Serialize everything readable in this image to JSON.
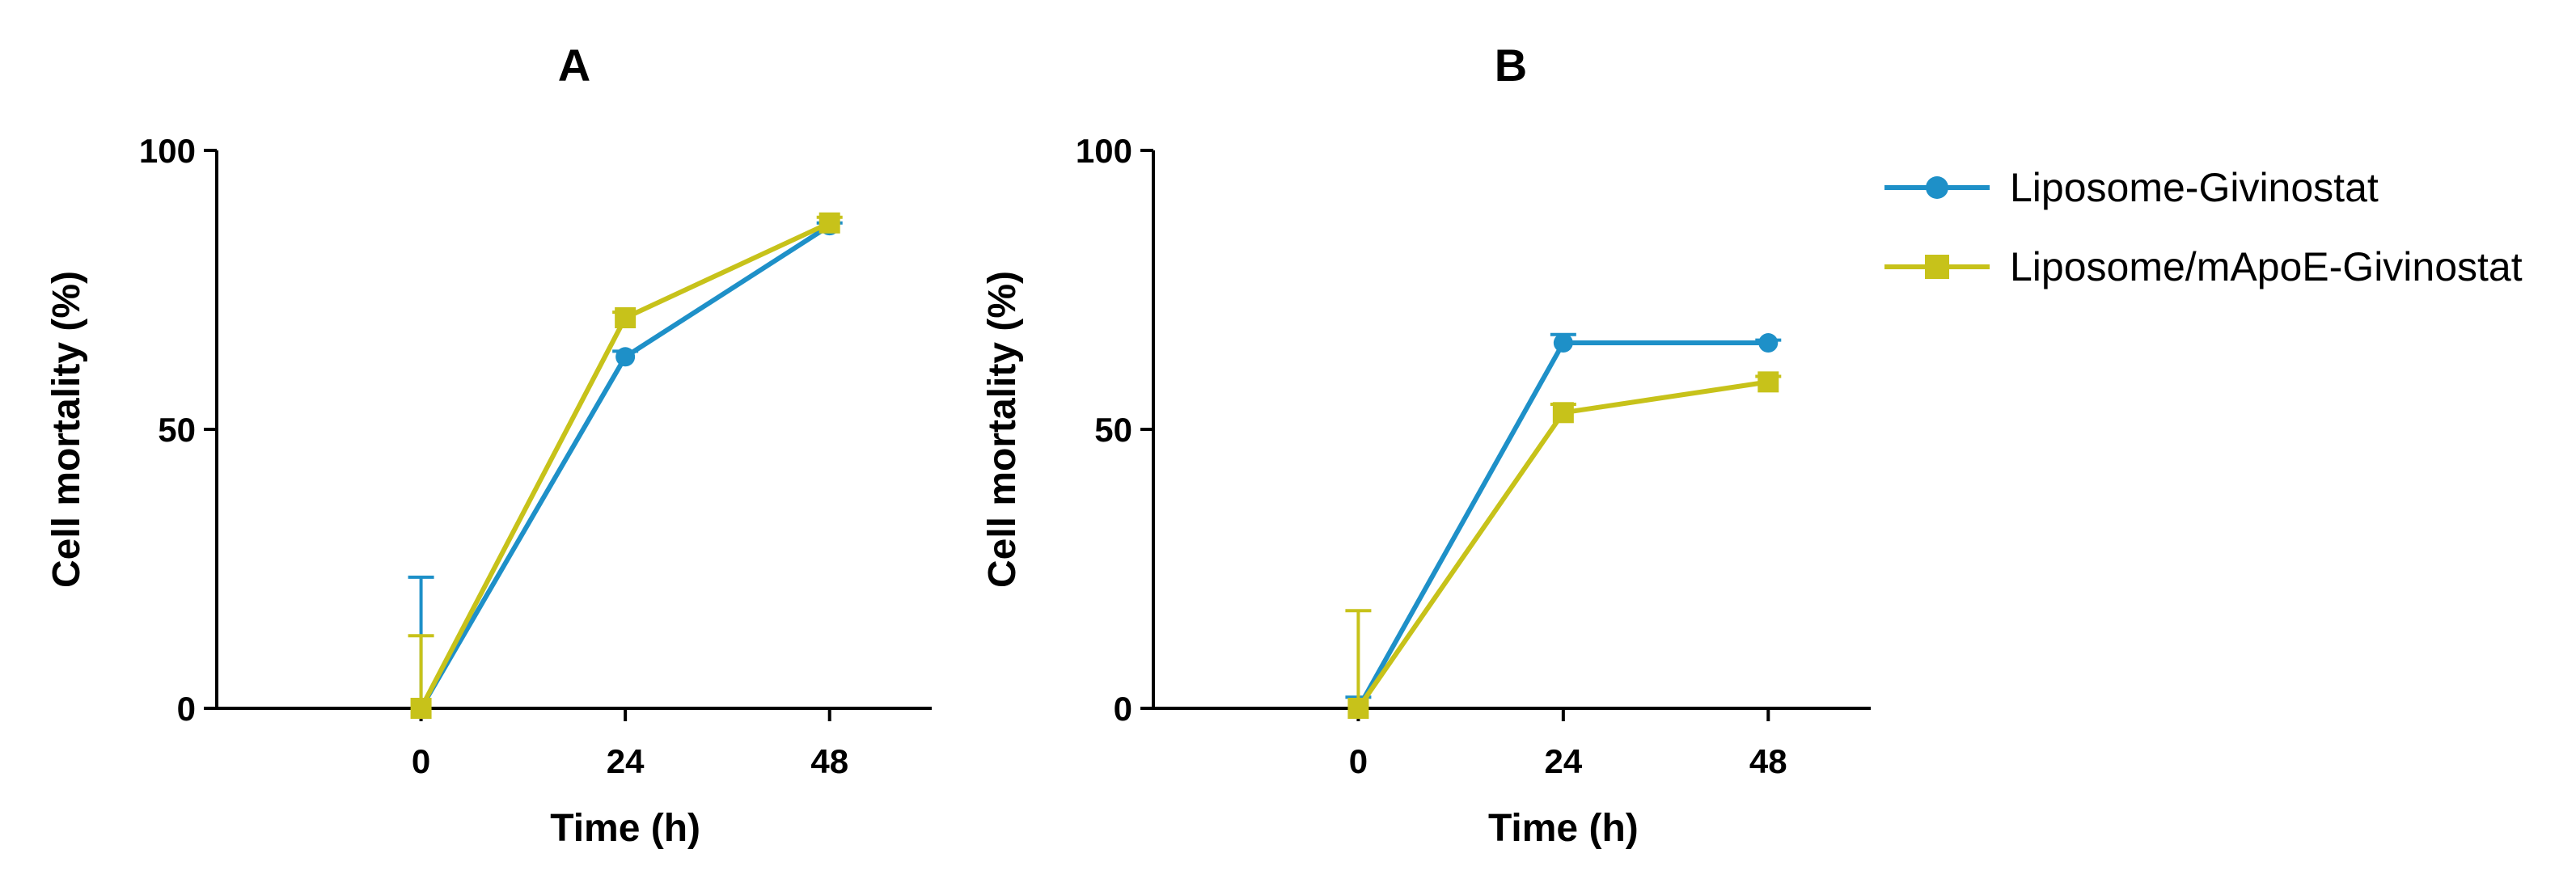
{
  "colors": {
    "liposome": "#1e90c8",
    "mapoe": "#c7c21a"
  },
  "legend": {
    "items": [
      {
        "label": "Liposome-Givinostat",
        "marker": "circle",
        "color": "#1e90c8"
      },
      {
        "label": "Liposome/mApoE-Givinostat",
        "marker": "square",
        "color": "#c7c21a"
      }
    ]
  },
  "chart_data": [
    {
      "type": "line",
      "title": "A",
      "xlabel": "Time (h)",
      "ylabel": "Cell mortality (%)",
      "categories": [
        0,
        24,
        48
      ],
      "xlim": [
        -24,
        60
      ],
      "ylim": [
        0,
        100
      ],
      "yticks": [
        0,
        50,
        100
      ],
      "series": [
        {
          "name": "Liposome-Givinostat",
          "values": [
            0,
            63,
            86.5
          ],
          "error_upper": [
            23.5,
            1,
            0.5
          ]
        },
        {
          "name": "Liposome/mApoE-Givinostat",
          "values": [
            0,
            70,
            87
          ],
          "error_upper": [
            13,
            1,
            1
          ]
        }
      ]
    },
    {
      "type": "line",
      "title": "B",
      "xlabel": "Time (h)",
      "ylabel": "Cell mortality (%)",
      "categories": [
        0,
        24,
        48
      ],
      "xlim": [
        -24,
        60
      ],
      "ylim": [
        0,
        100
      ],
      "yticks": [
        0,
        50,
        100
      ],
      "series": [
        {
          "name": "Liposome-Givinostat",
          "values": [
            0,
            65.5,
            65.5
          ],
          "error_upper": [
            2,
            1.5,
            0.5
          ]
        },
        {
          "name": "Liposome/mApoE-Givinostat",
          "values": [
            0,
            53,
            58.5
          ],
          "error_upper": [
            17.5,
            1.5,
            1
          ]
        }
      ]
    }
  ]
}
